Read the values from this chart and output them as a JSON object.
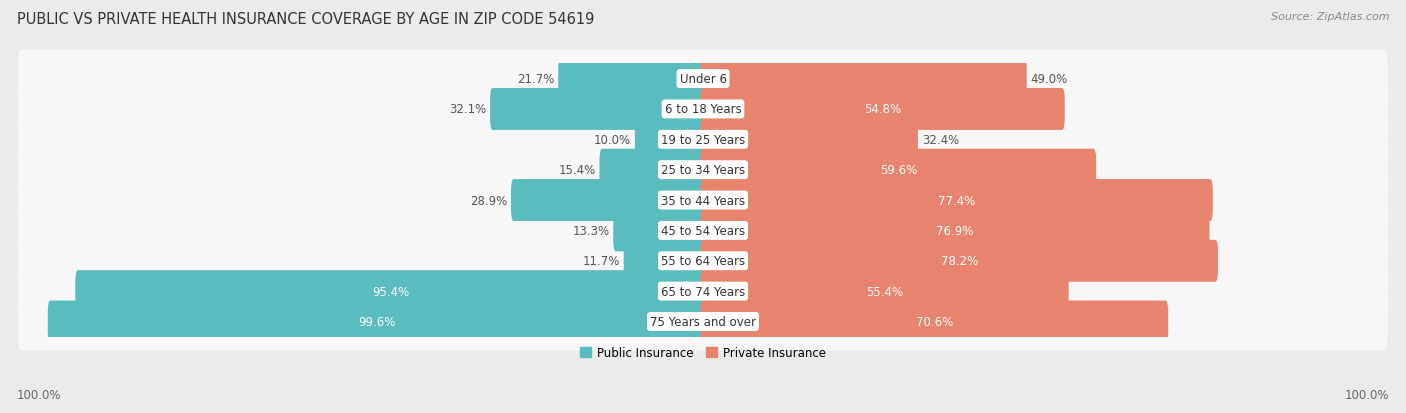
{
  "title": "PUBLIC VS PRIVATE HEALTH INSURANCE COVERAGE BY AGE IN ZIP CODE 54619",
  "source": "Source: ZipAtlas.com",
  "categories": [
    "Under 6",
    "6 to 18 Years",
    "19 to 25 Years",
    "25 to 34 Years",
    "35 to 44 Years",
    "45 to 54 Years",
    "55 to 64 Years",
    "65 to 74 Years",
    "75 Years and over"
  ],
  "public_values": [
    21.7,
    32.1,
    10.0,
    15.4,
    28.9,
    13.3,
    11.7,
    95.4,
    99.6
  ],
  "private_values": [
    49.0,
    54.8,
    32.4,
    59.6,
    77.4,
    76.9,
    78.2,
    55.4,
    70.6
  ],
  "public_color": "#5bbcbf",
  "private_color": "#e8836e",
  "bg_color": "#ebebeb",
  "row_bg_color": "#f7f7f7",
  "axis_label_left": "100.0%",
  "axis_label_right": "100.0%",
  "legend_public": "Public Insurance",
  "legend_private": "Private Insurance",
  "title_fontsize": 10.5,
  "source_fontsize": 8,
  "bar_label_fontsize": 8.5,
  "category_fontsize": 8.5,
  "axis_fontsize": 8.5
}
